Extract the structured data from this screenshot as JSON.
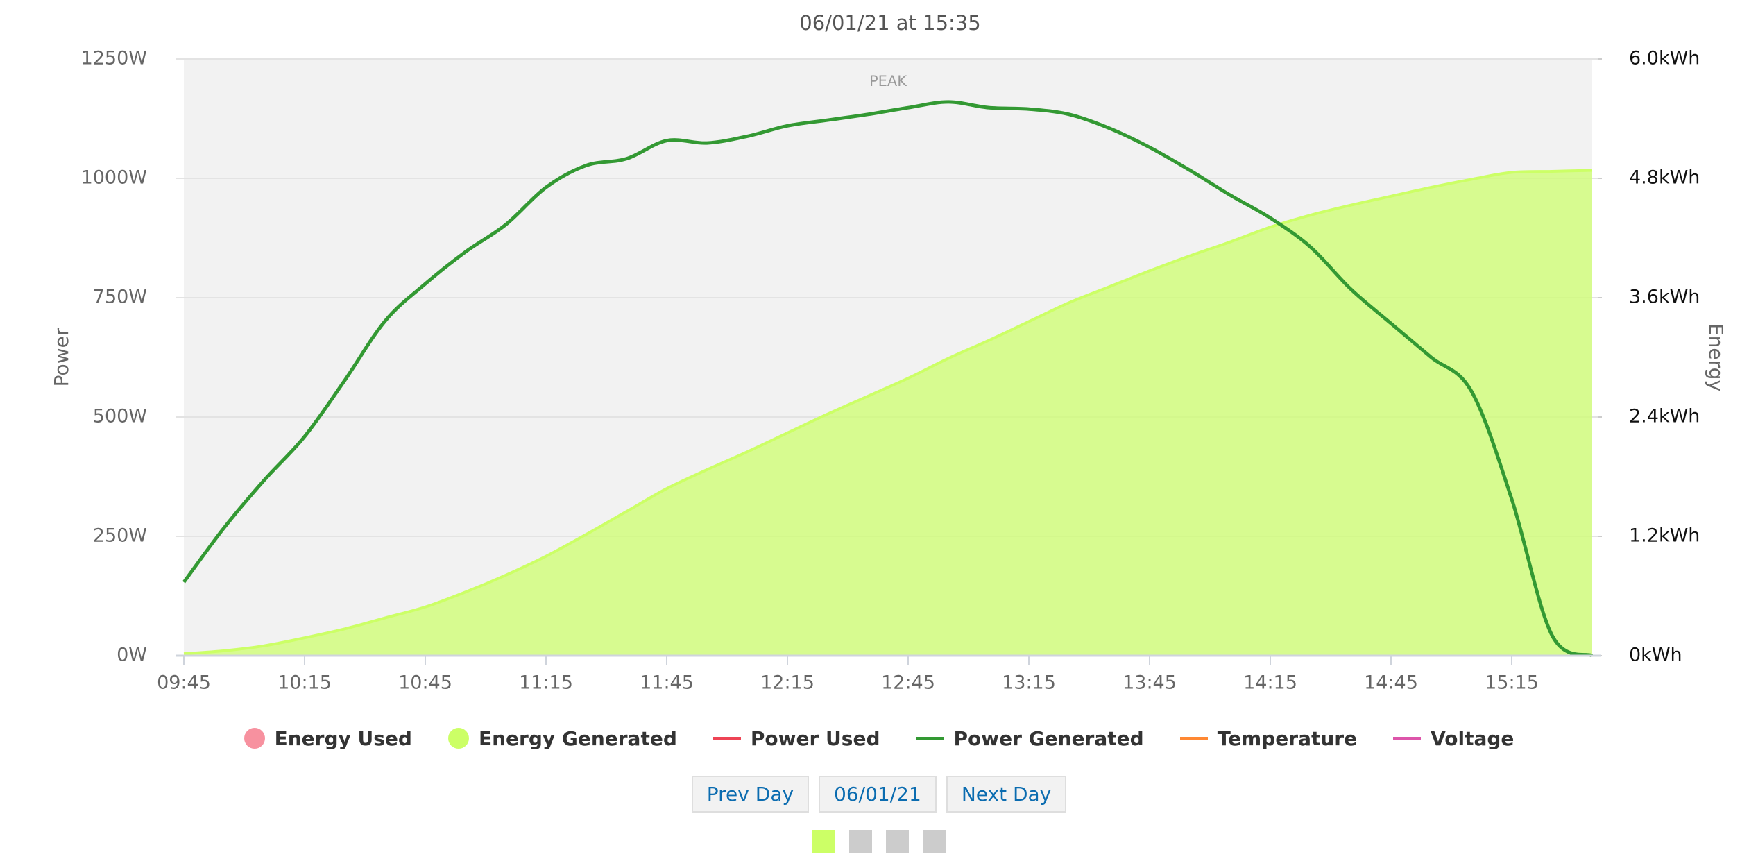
{
  "chart_data": {
    "type": "line",
    "title": "06/01/21 at 15:35",
    "annotation": "PEAK",
    "ylabel": "Power",
    "y2label": "Energy",
    "x": [
      "09:45",
      "09:55",
      "10:05",
      "10:15",
      "10:25",
      "10:35",
      "10:45",
      "10:55",
      "11:05",
      "11:15",
      "11:25",
      "11:35",
      "11:45",
      "11:55",
      "12:05",
      "12:15",
      "12:25",
      "12:35",
      "12:45",
      "12:55",
      "13:05",
      "13:15",
      "13:25",
      "13:35",
      "13:45",
      "13:55",
      "14:05",
      "14:15",
      "14:25",
      "14:35",
      "14:45",
      "14:55",
      "15:05",
      "15:15",
      "15:25",
      "15:35"
    ],
    "xticks": [
      "09:45",
      "10:15",
      "10:45",
      "11:15",
      "11:45",
      "12:15",
      "12:45",
      "13:15",
      "13:45",
      "14:15",
      "14:45",
      "15:15"
    ],
    "ylim": [
      0,
      1250
    ],
    "yticks": [
      {
        "value": 0,
        "label": "0W"
      },
      {
        "value": 250,
        "label": "250W"
      },
      {
        "value": 500,
        "label": "500W"
      },
      {
        "value": 750,
        "label": "750W"
      },
      {
        "value": 1000,
        "label": "1000W"
      },
      {
        "value": 1250,
        "label": "1250W"
      }
    ],
    "y2lim": [
      0,
      6
    ],
    "y2ticks": [
      {
        "value": 0,
        "label": "0kWh"
      },
      {
        "value": 1.2,
        "label": "1.2kWh"
      },
      {
        "value": 2.4,
        "label": "2.4kWh"
      },
      {
        "value": 3.6,
        "label": "3.6kWh"
      },
      {
        "value": 4.8,
        "label": "4.8kWh"
      },
      {
        "value": 6,
        "label": "6.0kWh"
      }
    ],
    "grid": true,
    "series": [
      {
        "name": "Energy Used",
        "color": "#f7919f",
        "marker": "circle"
      },
      {
        "name": "Energy Generated",
        "color": "#ccff66",
        "marker": "circle",
        "type": "area",
        "axis": "y2",
        "values": [
          0.02,
          0.05,
          0.1,
          0.18,
          0.27,
          0.38,
          0.49,
          0.64,
          0.81,
          1.0,
          1.22,
          1.45,
          1.68,
          1.87,
          2.05,
          2.24,
          2.43,
          2.61,
          2.79,
          2.99,
          3.17,
          3.36,
          3.55,
          3.71,
          3.87,
          4.02,
          4.16,
          4.31,
          4.43,
          4.53,
          4.62,
          4.71,
          4.79,
          4.86,
          4.87,
          4.88
        ]
      },
      {
        "name": "Power Used",
        "color": "#ee4455",
        "marker": "line"
      },
      {
        "name": "Power Generated",
        "color": "#339933",
        "marker": "line",
        "type": "line",
        "values": [
          154,
          268,
          368,
          459,
          577,
          701,
          779,
          846,
          903,
          981,
          1027,
          1041,
          1079,
          1074,
          1088,
          1110,
          1122,
          1134,
          1148,
          1160,
          1148,
          1145,
          1134,
          1105,
          1065,
          1017,
          965,
          917,
          856,
          768,
          696,
          625,
          554,
          328,
          43,
          0
        ]
      },
      {
        "name": "Temperature",
        "color": "#ff8833",
        "marker": "line"
      },
      {
        "name": "Voltage",
        "color": "#dd55aa",
        "marker": "line"
      }
    ]
  },
  "controls": {
    "prev": "Prev Day",
    "date": "06/01/21",
    "next": "Next Day"
  }
}
